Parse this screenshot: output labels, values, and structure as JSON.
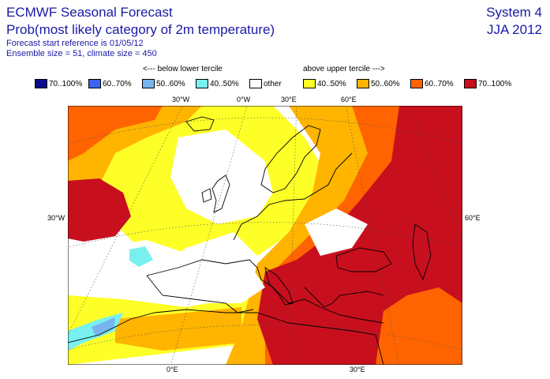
{
  "header": {
    "title": "ECMWF Seasonal Forecast",
    "subtitle": "Prob(most likely category of 2m temperature)",
    "start_ref": "Forecast start reference is 01/05/12",
    "ensemble": "Ensemble size = 51, climate size = 450",
    "system": "System 4",
    "season": "JJA 2012"
  },
  "legend": {
    "below_heading": "<--- below lower tercile",
    "above_heading": "above upper tercile --->",
    "items": [
      {
        "label": "70..100%",
        "color": "#0a0a8c"
      },
      {
        "label": "60..70%",
        "color": "#3c64f0"
      },
      {
        "label": "50..60%",
        "color": "#78b4f0"
      },
      {
        "label": "40..50%",
        "color": "#78f0f0"
      },
      {
        "label": "other",
        "color": "#ffffff"
      },
      {
        "label": "40..50%",
        "color": "#ffff28"
      },
      {
        "label": "50..60%",
        "color": "#ffb400"
      },
      {
        "label": "60..70%",
        "color": "#ff6400"
      },
      {
        "label": "70..100%",
        "color": "#c80f1e"
      }
    ]
  },
  "axis_labels": {
    "top": [
      "30°W",
      "0°W",
      "30°E",
      "60°E"
    ],
    "left": "30°W",
    "right": "60°E",
    "bottom": [
      "0°E",
      "30°E"
    ]
  }
}
